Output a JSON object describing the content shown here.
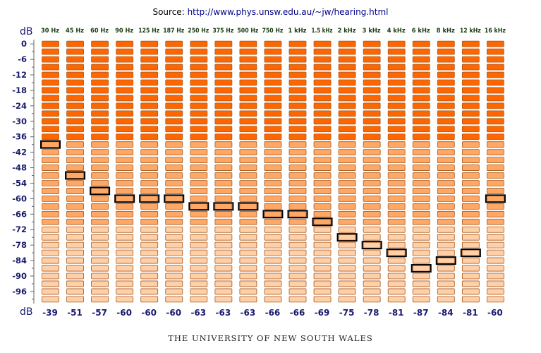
{
  "source": {
    "prefix": "Source:",
    "url": "http://www.phys.unsw.edu.au/~jw/hearing.html"
  },
  "footer": "THE UNIVERSITY OF NEW SOUTH WALES",
  "colors": {
    "axis_text": "#1a1a6e",
    "freq_label": "#1a3a10",
    "cell_dark": "#ff6600",
    "cell_mid": "#ffa866",
    "cell_light": "#ffcfa8",
    "cell_border": "#a85a1e",
    "marker": "#000000"
  },
  "chart_data": {
    "type": "heatmap",
    "title": "",
    "ylabel": "dB",
    "xlabel": "dB",
    "categories": [
      "30 Hz",
      "45 Hz",
      "60 Hz",
      "90 Hz",
      "125 Hz",
      "187 Hz",
      "250 Hz",
      "375 Hz",
      "500 Hz",
      "750 Hz",
      "1 kHz",
      "1.5 kHz",
      "2 kHz",
      "3 kHz",
      "4 kHz",
      "6 kHz",
      "8 kHz",
      "12 kHz",
      "16 kHz"
    ],
    "values": [
      -39,
      -51,
      -57,
      -60,
      -60,
      -60,
      -63,
      -63,
      -63,
      -66,
      -66,
      -69,
      -75,
      -78,
      -81,
      -87,
      -84,
      -81,
      -60
    ],
    "value_labels": [
      "-39",
      "-51",
      "-57",
      "-60",
      "-60",
      "-60",
      "-63",
      "-63",
      "-63",
      "-66",
      "-66",
      "-69",
      "-75",
      "-78",
      "-81",
      "-87",
      "-84",
      "-81",
      "-60"
    ],
    "y_ticks": [
      "0",
      "-6",
      "-12",
      "-18",
      "-24",
      "-30",
      "-36",
      "-42",
      "-48",
      "-54",
      "-60",
      "-66",
      "-72",
      "-78",
      "-84",
      "-90",
      "-96"
    ],
    "ylim": [
      -99,
      0
    ],
    "step_db": 3,
    "grid": false,
    "legend": "none"
  }
}
